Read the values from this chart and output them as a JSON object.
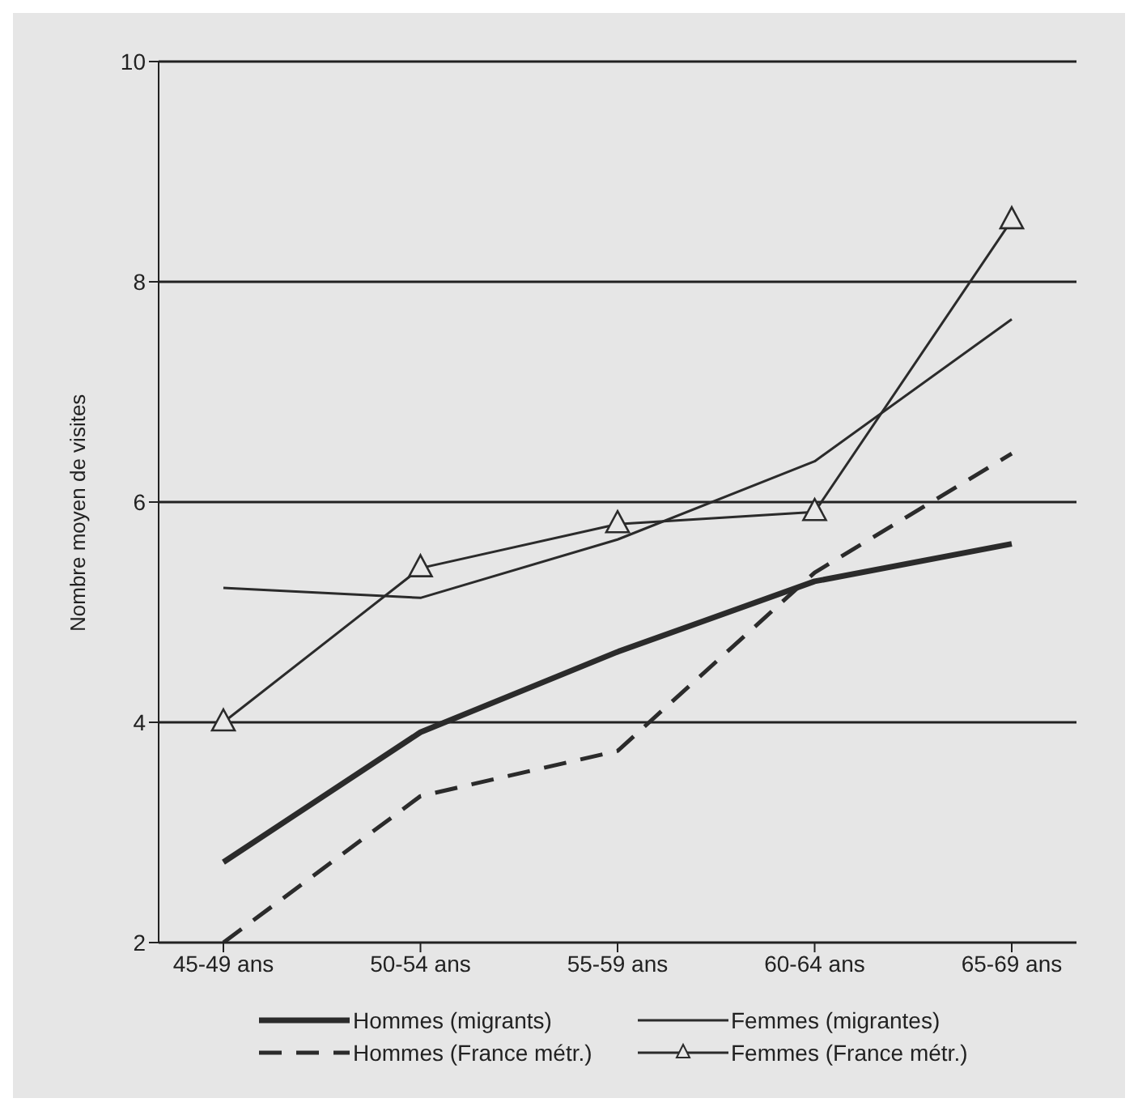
{
  "chart_data": {
    "type": "line",
    "ylabel": "Nombre moyen de visites",
    "categories": [
      "45-49 ans",
      "50-54 ans",
      "55-59 ans",
      "60-64 ans",
      "65-69 ans"
    ],
    "ylim": [
      2,
      10
    ],
    "yticks": [
      2,
      4,
      6,
      8,
      10
    ],
    "grid": "y",
    "legend": "bottom",
    "marker": "none",
    "series": [
      {
        "name": "Hommes (migrants)",
        "color": "#2b2b2b",
        "line_style": "solid",
        "values": [
          2.73,
          3.91,
          4.64,
          5.28,
          5.62
        ]
      },
      {
        "name": "Femmes (migrantes)",
        "color": "#2b2b2b",
        "line_style": "solid",
        "values": [
          5.22,
          5.13,
          5.66,
          6.37,
          7.66
        ]
      },
      {
        "name": "Hommes (France métr.)",
        "color": "#2b2b2b",
        "line_style": "dashed",
        "values": [
          2.0,
          3.33,
          3.74,
          5.36,
          6.44
        ]
      },
      {
        "name": "Femmes (France métr.)",
        "color": "#2b2b2b",
        "line_style": "solid",
        "marker": "triangle",
        "values": [
          4.0,
          5.4,
          5.8,
          5.91,
          8.56
        ]
      }
    ]
  }
}
